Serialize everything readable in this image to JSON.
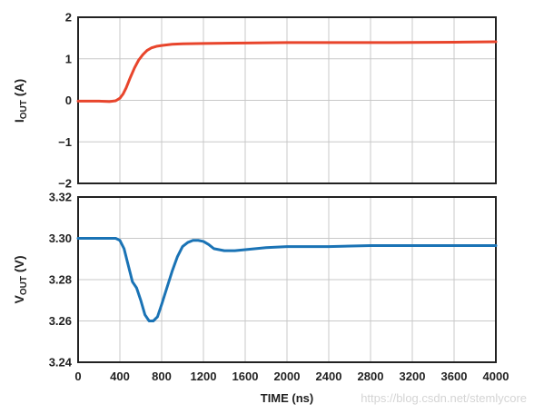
{
  "chart_data": [
    {
      "type": "line",
      "ylabel_main": "I",
      "ylabel_sub": "OUT",
      "ylabel_unit": "(A)",
      "xlim": [
        0,
        4000
      ],
      "ylim": [
        -2,
        2
      ],
      "y_ticks": [
        "2",
        "1",
        "0",
        "−1",
        "−2"
      ],
      "grid": true,
      "series": [
        {
          "color": "#e8452c",
          "x": [
            0,
            200,
            300,
            360,
            400,
            430,
            460,
            500,
            540,
            580,
            620,
            660,
            700,
            750,
            800,
            900,
            1000,
            1200,
            1600,
            2000,
            3000,
            3600,
            4000
          ],
          "y": [
            -0.02,
            -0.02,
            -0.03,
            -0.01,
            0.05,
            0.15,
            0.3,
            0.55,
            0.78,
            0.97,
            1.1,
            1.2,
            1.26,
            1.3,
            1.32,
            1.35,
            1.36,
            1.37,
            1.38,
            1.39,
            1.39,
            1.4,
            1.41
          ]
        }
      ]
    },
    {
      "type": "line",
      "ylabel_main": "V",
      "ylabel_sub": "OUT",
      "ylabel_unit": "(V)",
      "xlabel": "TIME (ns)",
      "xlim": [
        0,
        4000
      ],
      "ylim": [
        3.24,
        3.32
      ],
      "x_ticks": [
        "0",
        "400",
        "800",
        "1200",
        "1600",
        "2000",
        "2400",
        "2800",
        "3200",
        "3600",
        "4000"
      ],
      "y_ticks": [
        "3.32",
        "3.30",
        "3.28",
        "3.26",
        "3.24"
      ],
      "grid": true,
      "series": [
        {
          "color": "#1a73b5",
          "x": [
            0,
            100,
            200,
            300,
            360,
            400,
            440,
            480,
            520,
            560,
            600,
            640,
            680,
            720,
            760,
            800,
            850,
            900,
            950,
            1000,
            1050,
            1100,
            1150,
            1200,
            1250,
            1300,
            1400,
            1500,
            1600,
            1800,
            2000,
            2400,
            2800,
            3200,
            4000
          ],
          "y": [
            3.3,
            3.3,
            3.3,
            3.3,
            3.3,
            3.299,
            3.295,
            3.287,
            3.279,
            3.276,
            3.27,
            3.263,
            3.26,
            3.26,
            3.262,
            3.268,
            3.276,
            3.284,
            3.291,
            3.296,
            3.298,
            3.299,
            3.299,
            3.2985,
            3.297,
            3.295,
            3.294,
            3.294,
            3.2945,
            3.2955,
            3.296,
            3.296,
            3.2965,
            3.2965,
            3.2965
          ]
        }
      ]
    }
  ],
  "watermark": "https://blog.csdn.net/stemlycore"
}
